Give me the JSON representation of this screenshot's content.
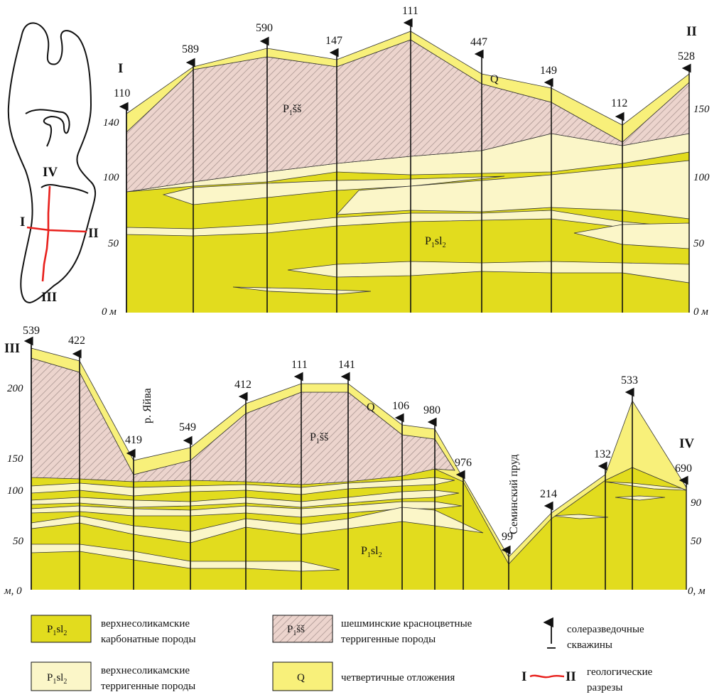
{
  "colors": {
    "carbonate": "#e2dc1e",
    "terrigenous": "#fbf6c8",
    "quaternary": "#f8f07a",
    "redbeds_fill": "#ecd4cd",
    "redbeds_hatch": "#a38f8b",
    "section_line": "#e8201c"
  },
  "map": {
    "labels": {
      "I": "I",
      "II": "II",
      "III": "III",
      "IV": "IV"
    }
  },
  "section1": {
    "start_label": "I",
    "end_label": "II",
    "ticks_left": [
      "140",
      "100",
      "50",
      "0 м"
    ],
    "ticks_right": [
      "150",
      "100",
      "50",
      "0 м"
    ],
    "label_q": "Q",
    "label_sh_main": "P",
    "label_sh_sub": "1",
    "label_sh_rest": "šš",
    "label_sl_main": "P",
    "label_sl_sub": "1",
    "label_sl_mid": "sl",
    "label_sl_sub2": "2",
    "wells": [
      "110",
      "589",
      "590",
      "147",
      "111",
      "447",
      "149",
      "112",
      "528"
    ]
  },
  "section2": {
    "start_label": "III",
    "end_label": "IV",
    "ticks_left": [
      "200",
      "150",
      "100",
      "50",
      "м, 0"
    ],
    "ticks_right": [
      "90",
      "50",
      "0, м"
    ],
    "label_river": "р. Яйва",
    "label_pond": "Семинский пруд",
    "label_q": "Q",
    "label_sh_main": "P",
    "label_sh_sub": "1",
    "label_sh_rest": "šš",
    "label_sl_main": "P",
    "label_sl_sub": "1",
    "label_sl_mid": "sl",
    "label_sl_sub2": "2",
    "wells": [
      "539",
      "422",
      "419",
      "549",
      "412",
      "111",
      "141",
      "106",
      "980",
      "976",
      "99",
      "214",
      "132",
      "533",
      "690"
    ]
  },
  "legend": {
    "carbonate_sym_main": "P",
    "carbonate_sym_sub": "1",
    "carbonate_sym_mid": "sl",
    "carbonate_sym_sub2": "2",
    "carbonate_line1": "верхнесоликамские",
    "carbonate_line2": "карбонатные породы",
    "terrigenous_sym_main": "P",
    "terrigenous_sym_sub": "1",
    "terrigenous_sym_mid": "sl",
    "terrigenous_sym_sub2": "2",
    "terrigenous_line1": "верхнесоликамские",
    "terrigenous_line2": "терригенные породы",
    "redbeds_sym_main": "P",
    "redbeds_sym_sub": "1",
    "redbeds_sym_rest": "šš",
    "redbeds_line1": "шешминские красноцветные",
    "redbeds_line2": "терригенные породы",
    "quaternary_sym": "Q",
    "quaternary_line1": "четвертичные отложения",
    "wells_line1": "солеразведочные",
    "wells_line2": "скважины",
    "section_sym_start": "I",
    "section_sym_end": "II",
    "section_line1": "геологические",
    "section_line2": "разрезы"
  }
}
